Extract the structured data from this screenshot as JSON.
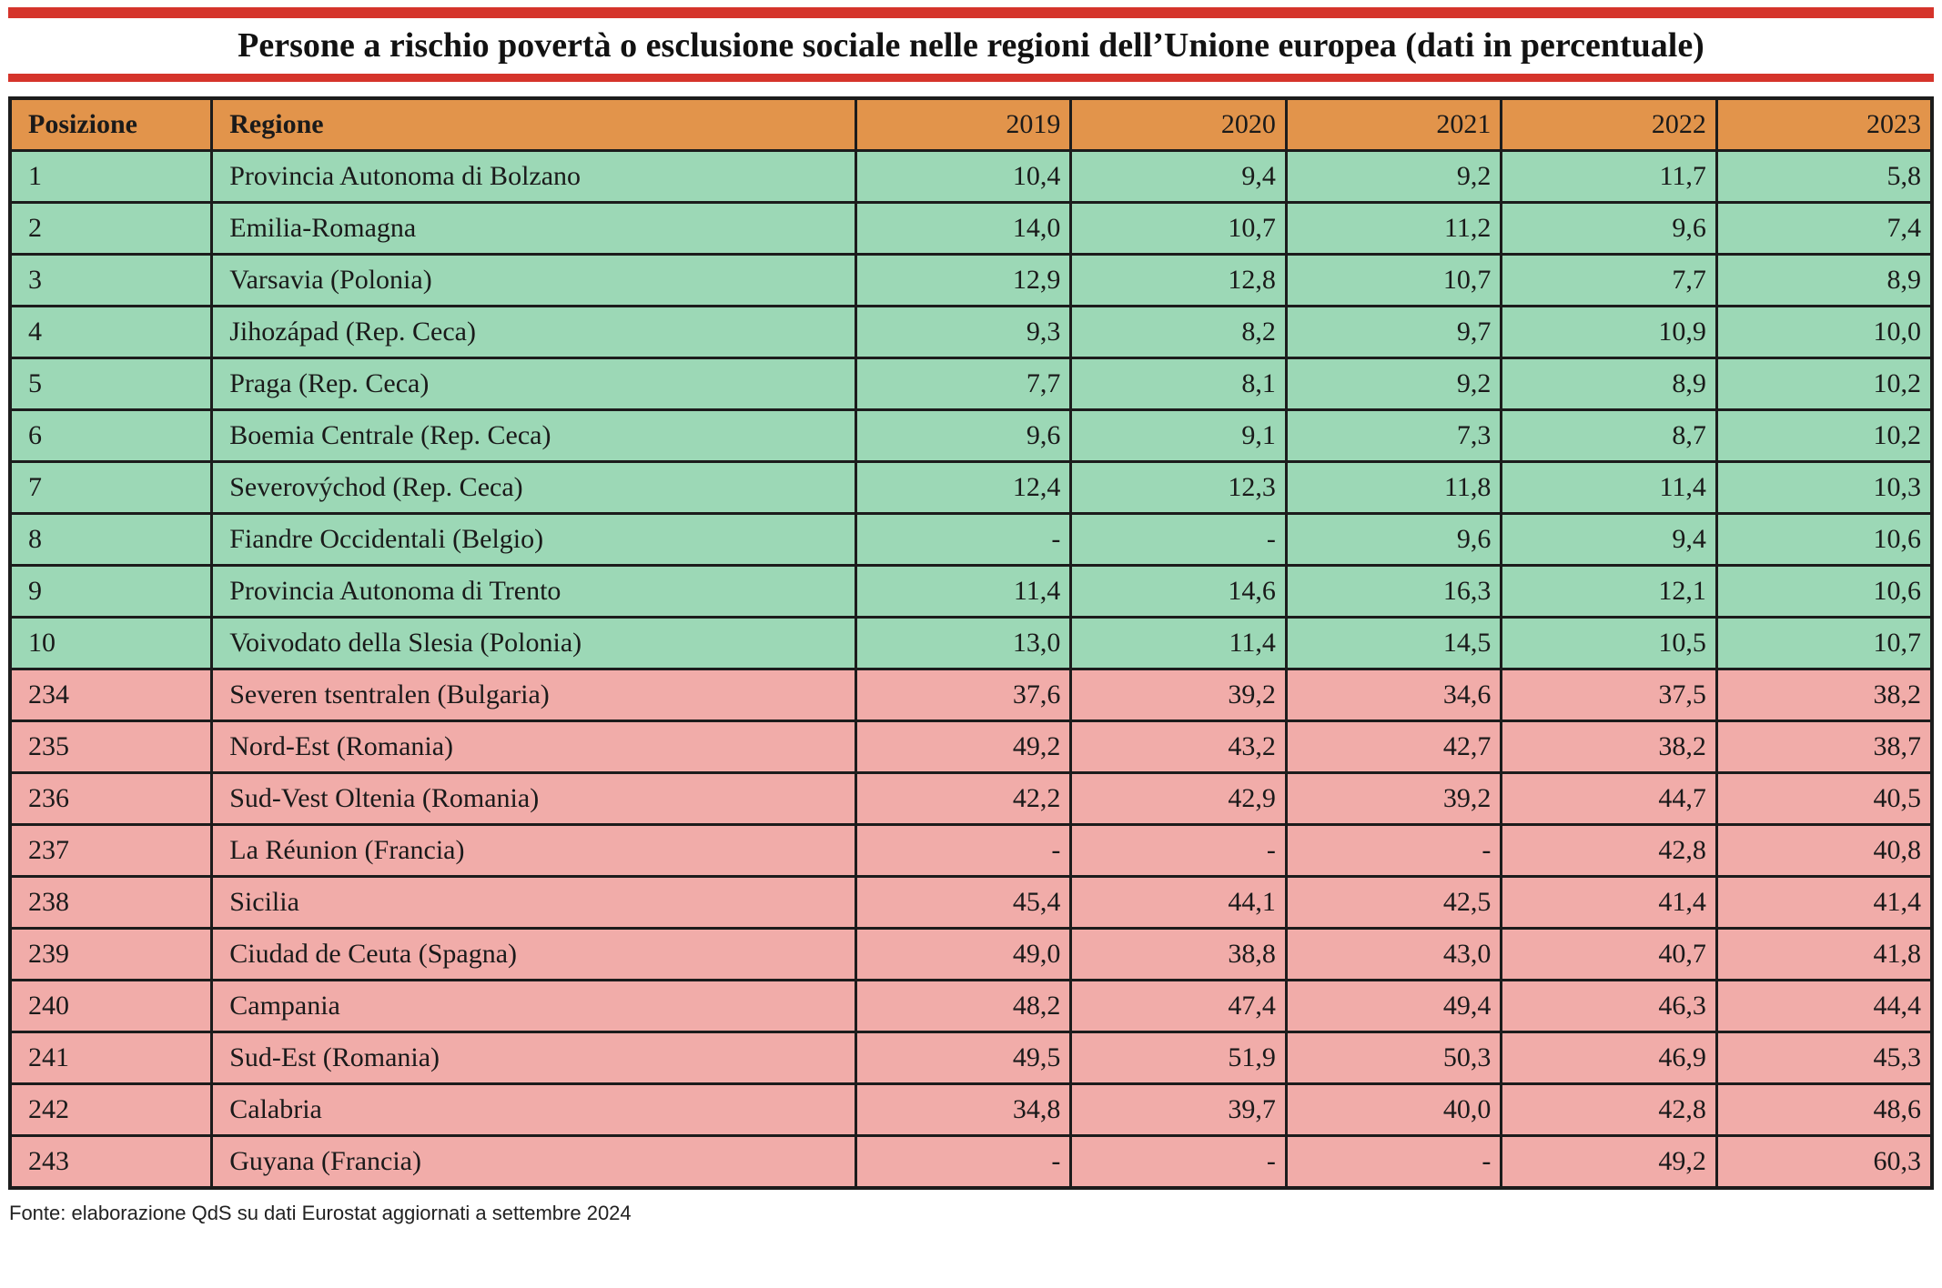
{
  "title": "Persone a rischio povertà o esclusione sociale nelle regioni dell’Unione europea (dati in percentuale)",
  "footer": "Fonte: elaborazione QdS su dati Eurostat aggiornati a settembre 2024",
  "colors": {
    "header_bg": "#e2944b",
    "low_band_bg": "#9cd8b6",
    "high_band_bg": "#f1aca9",
    "red_rule": "#d5342b",
    "border": "#1c1c1c"
  },
  "chart_data": {
    "type": "table",
    "title": "Persone a rischio povertà o esclusione sociale nelle regioni dell’Unione europea (dati in percentuale)",
    "columns": [
      "Posizione",
      "Regione",
      "2019",
      "2020",
      "2021",
      "2022",
      "2023"
    ],
    "rows": [
      {
        "posizione": "1",
        "regione": "Provincia Autonoma di Bolzano",
        "values": [
          "10,4",
          "9,4",
          "9,2",
          "11,7",
          "5,8"
        ],
        "band": "low"
      },
      {
        "posizione": "2",
        "regione": "Emilia-Romagna",
        "values": [
          "14,0",
          "10,7",
          "11,2",
          "9,6",
          "7,4"
        ],
        "band": "low"
      },
      {
        "posizione": "3",
        "regione": "Varsavia (Polonia)",
        "values": [
          "12,9",
          "12,8",
          "10,7",
          "7,7",
          "8,9"
        ],
        "band": "low"
      },
      {
        "posizione": "4",
        "regione": "Jihozápad (Rep. Ceca)",
        "values": [
          "9,3",
          "8,2",
          "9,7",
          "10,9",
          "10,0"
        ],
        "band": "low"
      },
      {
        "posizione": "5",
        "regione": "Praga (Rep. Ceca)",
        "values": [
          "7,7",
          "8,1",
          "9,2",
          "8,9",
          "10,2"
        ],
        "band": "low"
      },
      {
        "posizione": "6",
        "regione": "Boemia Centrale (Rep. Ceca)",
        "values": [
          "9,6",
          "9,1",
          "7,3",
          "8,7",
          "10,2"
        ],
        "band": "low"
      },
      {
        "posizione": "7",
        "regione": "Severovýchod (Rep. Ceca)",
        "values": [
          "12,4",
          "12,3",
          "11,8",
          "11,4",
          "10,3"
        ],
        "band": "low"
      },
      {
        "posizione": "8",
        "regione": "Fiandre Occidentali (Belgio)",
        "values": [
          "-",
          "-",
          "9,6",
          "9,4",
          "10,6"
        ],
        "band": "low"
      },
      {
        "posizione": "9",
        "regione": "Provincia Autonoma di Trento",
        "values": [
          "11,4",
          "14,6",
          "16,3",
          "12,1",
          "10,6"
        ],
        "band": "low"
      },
      {
        "posizione": "10",
        "regione": "Voivodato della Slesia (Polonia)",
        "values": [
          "13,0",
          "11,4",
          "14,5",
          "10,5",
          "10,7"
        ],
        "band": "low"
      },
      {
        "posizione": "234",
        "regione": "Severen tsentralen (Bulgaria)",
        "values": [
          "37,6",
          "39,2",
          "34,6",
          "37,5",
          "38,2"
        ],
        "band": "high"
      },
      {
        "posizione": "235",
        "regione": "Nord-Est (Romania)",
        "values": [
          "49,2",
          "43,2",
          "42,7",
          "38,2",
          "38,7"
        ],
        "band": "high"
      },
      {
        "posizione": "236",
        "regione": "Sud-Vest Oltenia (Romania)",
        "values": [
          "42,2",
          "42,9",
          "39,2",
          "44,7",
          "40,5"
        ],
        "band": "high"
      },
      {
        "posizione": "237",
        "regione": "La Réunion (Francia)",
        "values": [
          "-",
          "-",
          "-",
          "42,8",
          "40,8"
        ],
        "band": "high"
      },
      {
        "posizione": "238",
        "regione": "Sicilia",
        "values": [
          "45,4",
          "44,1",
          "42,5",
          "41,4",
          "41,4"
        ],
        "band": "high"
      },
      {
        "posizione": "239",
        "regione": "Ciudad de Ceuta (Spagna)",
        "values": [
          "49,0",
          "38,8",
          "43,0",
          "40,7",
          "41,8"
        ],
        "band": "high"
      },
      {
        "posizione": "240",
        "regione": "Campania",
        "values": [
          "48,2",
          "47,4",
          "49,4",
          "46,3",
          "44,4"
        ],
        "band": "high"
      },
      {
        "posizione": "241",
        "regione": "Sud-Est (Romania)",
        "values": [
          "49,5",
          "51,9",
          "50,3",
          "46,9",
          "45,3"
        ],
        "band": "high"
      },
      {
        "posizione": "242",
        "regione": "Calabria",
        "values": [
          "34,8",
          "39,7",
          "40,0",
          "42,8",
          "48,6"
        ],
        "band": "high"
      },
      {
        "posizione": "243",
        "regione": "Guyana (Francia)",
        "values": [
          "-",
          "-",
          "-",
          "49,2",
          "60,3"
        ],
        "band": "high"
      }
    ]
  }
}
